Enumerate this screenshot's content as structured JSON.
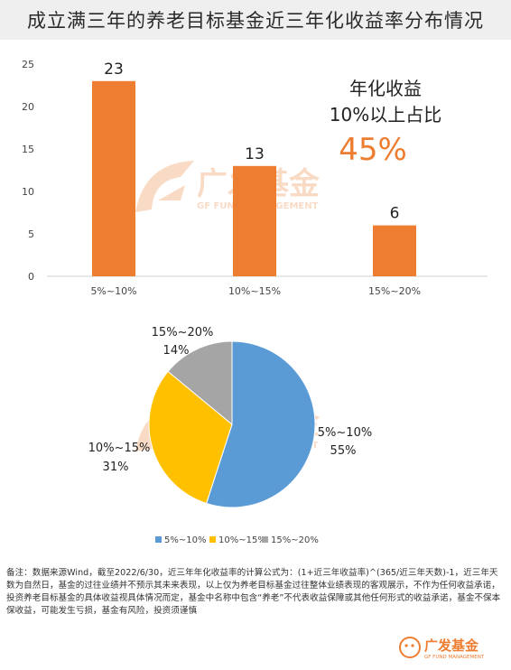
{
  "title": "成立满三年的养老目标基金近三年化收益率分布情况",
  "watermark": {
    "brand_cn": "广发基金",
    "brand_en": "GF FUND MANAGEMENT"
  },
  "callout": {
    "line1": "年化收益",
    "line2": "10%以上占比",
    "value": "45%"
  },
  "colors": {
    "bar": "#ED7D31",
    "pie_5_10": "#5B9BD5",
    "pie_10_15": "#FFC000",
    "pie_15_20": "#A5A5A5",
    "accent_text": "#ED7D31"
  },
  "chart_data": [
    {
      "type": "bar",
      "categories": [
        "5%~10%",
        "10%~15%",
        "15%~20%"
      ],
      "values": [
        23,
        13,
        6
      ],
      "data_labels": [
        "23",
        "13",
        "6"
      ],
      "ylim": [
        0,
        25
      ],
      "yticks": [
        "0",
        "5",
        "10",
        "15",
        "20",
        "25"
      ],
      "grid": false
    },
    {
      "type": "pie",
      "categories": [
        "5%~10%",
        "10%~15%",
        "15%~20%"
      ],
      "values": [
        55,
        31,
        14
      ],
      "labels": [
        {
          "name": "5%~10%",
          "pct": "55%"
        },
        {
          "name": "10%~15%",
          "pct": "31%"
        },
        {
          "name": "15%~20%",
          "pct": "14%"
        }
      ],
      "legend": [
        "5%~10%",
        "10%~15%",
        "15%~20%"
      ],
      "legend_position": "bottom"
    }
  ],
  "footnote": "备注：数据来源Wind，截至2022/6/30，近三年年化收益率的计算公式为：(1+近三年收益率)^(365/近三年天数)-1，近三年天数为自然日，基金的过往业绩并不预示其未来表现，以上仅为养老目标基金过往整体业绩表现的客观展示，不作为任何收益承诺，投资养老目标基金的具体收益视具体情况而定，基金中名称中包含“养老”不代表收益保障或其他任何形式的收益承诺，基金不保本保收益，可能发生亏损，基金有风险，投资须谨慎",
  "footer_logo": {
    "brand_cn": "广发基金",
    "brand_en": "GF FUND MANAGEMENT"
  }
}
